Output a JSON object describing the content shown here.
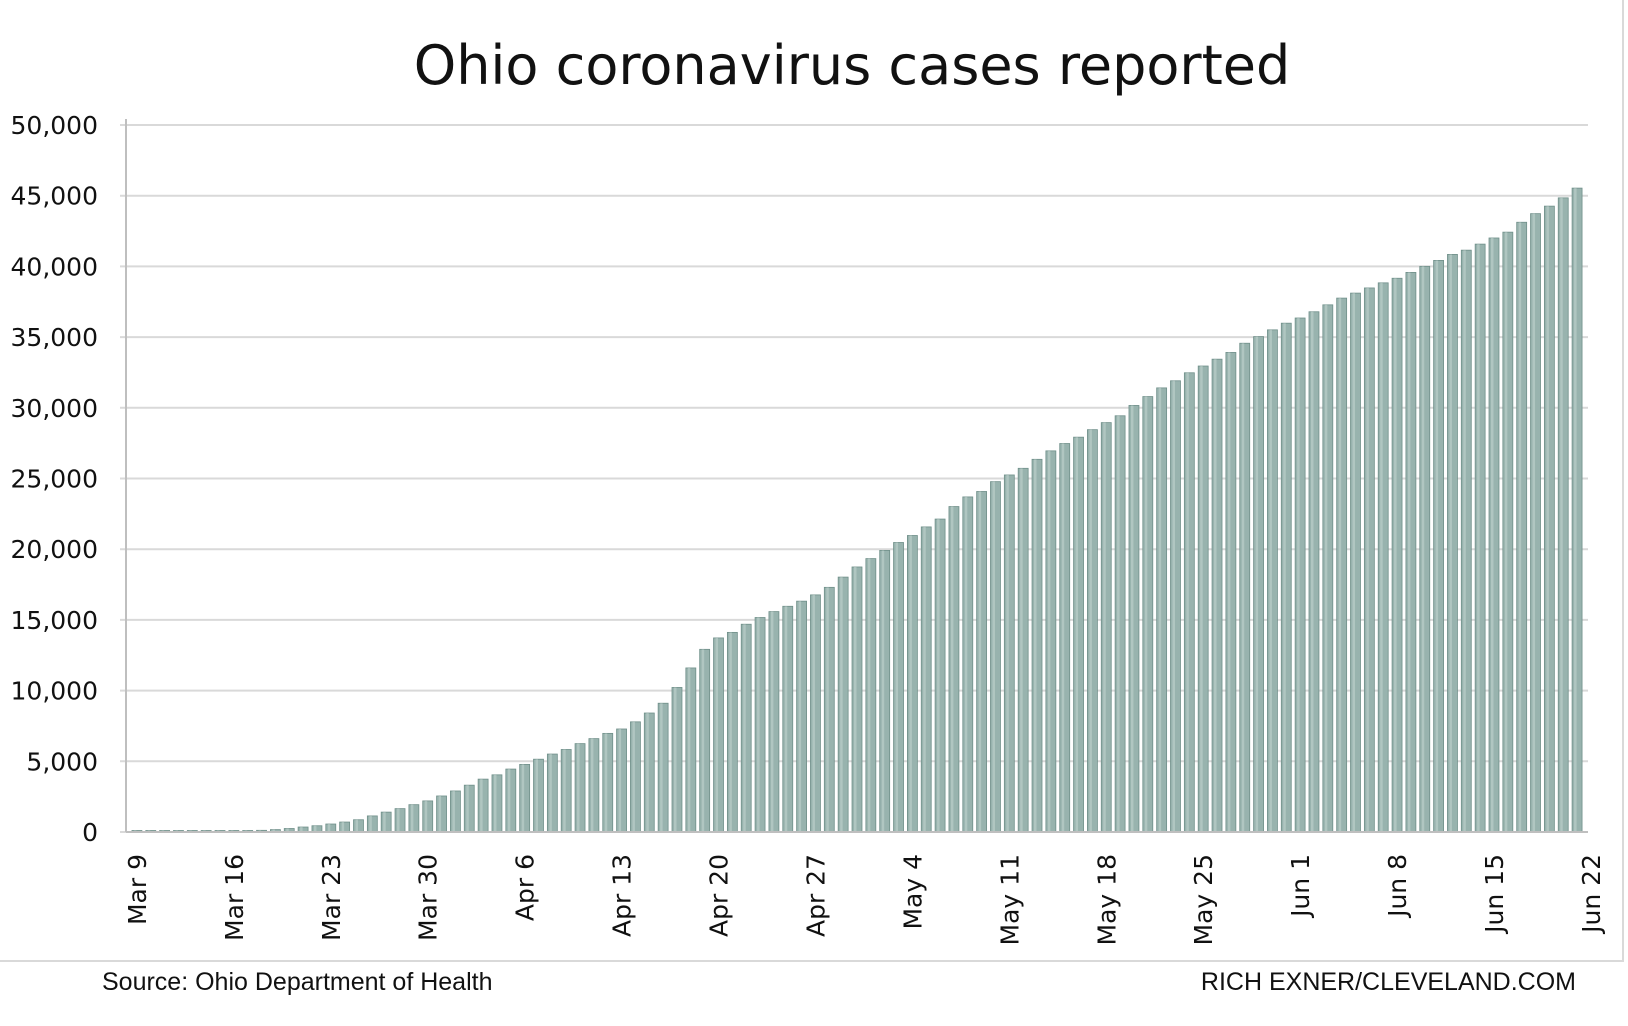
{
  "chart_data": {
    "type": "bar",
    "title": "Ohio coronavirus cases reported",
    "xlabel": "",
    "ylabel": "",
    "ylim": [
      0,
      50000
    ],
    "yticks": [
      {
        "value": 0,
        "label": "0"
      },
      {
        "value": 5000,
        "label": "5,000"
      },
      {
        "value": 10000,
        "label": "10,000"
      },
      {
        "value": 15000,
        "label": "15,000"
      },
      {
        "value": 20000,
        "label": "20,000"
      },
      {
        "value": 25000,
        "label": "25,000"
      },
      {
        "value": 30000,
        "label": "30,000"
      },
      {
        "value": 35000,
        "label": "35,000"
      },
      {
        "value": 40000,
        "label": "40,000"
      },
      {
        "value": 45000,
        "label": "45,000"
      },
      {
        "value": 50000,
        "label": "50,000"
      }
    ],
    "xticks": [
      {
        "index": 0,
        "label": "Mar 9"
      },
      {
        "index": 7,
        "label": "Mar 16"
      },
      {
        "index": 14,
        "label": "Mar 23"
      },
      {
        "index": 21,
        "label": "Mar 30"
      },
      {
        "index": 28,
        "label": "Apr 6"
      },
      {
        "index": 35,
        "label": "Apr 13"
      },
      {
        "index": 42,
        "label": "Apr 20"
      },
      {
        "index": 49,
        "label": "Apr 27"
      },
      {
        "index": 56,
        "label": "May 4"
      },
      {
        "index": 63,
        "label": "May 11"
      },
      {
        "index": 70,
        "label": "May 18"
      },
      {
        "index": 77,
        "label": "May 25"
      },
      {
        "index": 84,
        "label": "Jun 1"
      },
      {
        "index": 91,
        "label": "Jun 8"
      },
      {
        "index": 98,
        "label": "Jun 15"
      },
      {
        "index": 105,
        "label": "Jun 22"
      }
    ],
    "values": [
      3,
      4,
      5,
      13,
      26,
      37,
      50,
      67,
      88,
      119,
      169,
      247,
      351,
      442,
      564,
      704,
      867,
      1137,
      1406,
      1653,
      1933,
      2199,
      2547,
      2902,
      3312,
      3739,
      4043,
      4450,
      4782,
      5148,
      5512,
      5836,
      6250,
      6604,
      6975,
      7285,
      7791,
      8414,
      9107,
      10222,
      11602,
      12919,
      13725,
      14117,
      14694,
      15169,
      15587,
      15963,
      16325,
      16769,
      17303,
      18027,
      18743,
      19335,
      19914,
      20474,
      20969,
      21576,
      22131,
      23016,
      23697,
      24081,
      24777,
      25250,
      25721,
      26357,
      26954,
      27474,
      27923,
      28454,
      28952,
      29436,
      30167,
      30794,
      31408,
      31911,
      32477,
      32954,
      33439,
      33915,
      34566,
      35034,
      35513,
      35984,
      36350,
      36792,
      37282,
      37758,
      38111,
      38476,
      38837,
      39162,
      39575,
      40004,
      40424,
      40848,
      41148,
      41576,
      42010,
      42422,
      43122,
      43731,
      44262,
      44848,
      45537
    ],
    "colors": {
      "bar_fill": "#98b3ae",
      "bar_edge": "#6f8f89",
      "bar_highlight": "#c4d6d2",
      "gridline": "#d9d9d9",
      "axis": "#bfbfbf"
    }
  },
  "footer": {
    "source": "Source: Ohio Department of Health",
    "credit": "RICH EXNER/CLEVELAND.COM"
  }
}
